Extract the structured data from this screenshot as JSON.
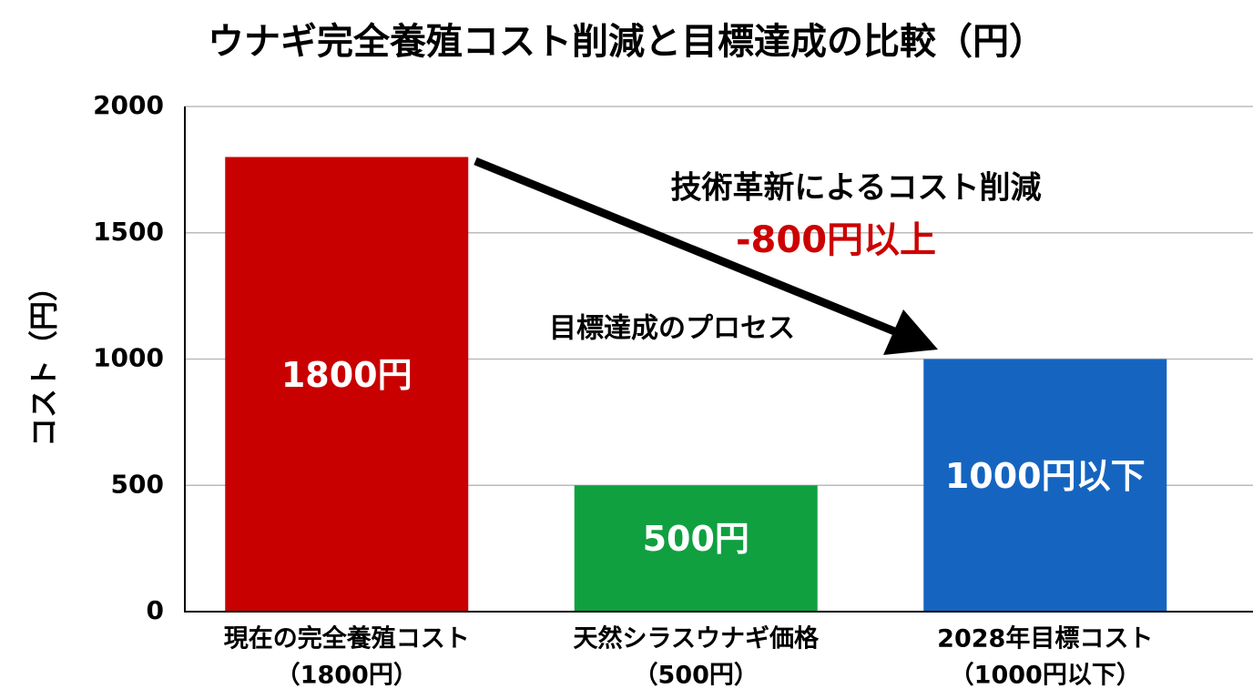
{
  "chart_data": {
    "type": "bar",
    "title": "ウナギ完全養殖コスト削減と目標達成の比較（円）",
    "y_label": "コスト（円）",
    "categories": [
      [
        "現在の完全養殖コスト",
        "（1800円）"
      ],
      [
        "天然シラスウナギ価格",
        "（500円）"
      ],
      [
        "2028年目標コスト",
        "（1000円以下）"
      ]
    ],
    "values": [
      1800,
      500,
      1000
    ],
    "value_labels": [
      "1800円",
      "500円",
      "1000円以下"
    ],
    "colors": [
      "#c80000",
      "#10a040",
      "#1565c0"
    ],
    "ylim": [
      0,
      2000
    ],
    "yticks": [
      0,
      500,
      1000,
      1500,
      2000
    ],
    "grid": true,
    "annotations": [
      {
        "text": "技術革新によるコスト削減",
        "color": "#000000"
      },
      {
        "text": "-800円以上",
        "color": "#cc0000"
      },
      {
        "text": "目標達成のプロセス",
        "color": "#000000"
      }
    ]
  }
}
